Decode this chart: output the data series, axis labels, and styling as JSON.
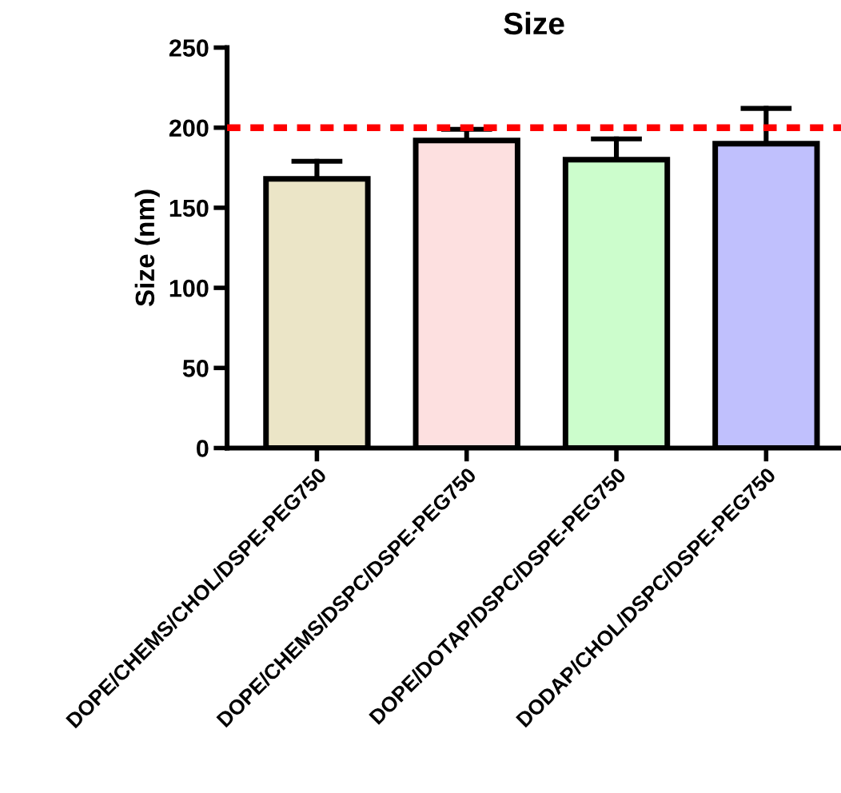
{
  "chart_data": {
    "type": "bar",
    "title": "Size",
    "ylabel": "Size (nm)",
    "categories": [
      "DOPE/CHEMS/CHOL/DSPE-PEG750",
      "DOPE/CHEMS/DSPC/DSPE-PEG750",
      "DOPE/DOTAP/DSPC/DSPE-PEG750",
      "DODAP/CHOL/DSPC/DSPE-PEG750"
    ],
    "values": [
      168,
      192,
      180,
      190
    ],
    "errors": [
      [
        168,
        179
      ],
      [
        192,
        199
      ],
      [
        180,
        193
      ],
      [
        190,
        212
      ]
    ],
    "colors": [
      "#ebe5c7",
      "#fde0e0",
      "#ccfdcc",
      "#c0c0fd"
    ],
    "ylim": [
      0,
      250
    ],
    "yticks": [
      0,
      50,
      100,
      150,
      200,
      250
    ],
    "ref_lines": [
      {
        "axis": "y",
        "value": 200,
        "color": "#ff0000",
        "line_style": "dashed"
      }
    ],
    "grid": false
  }
}
